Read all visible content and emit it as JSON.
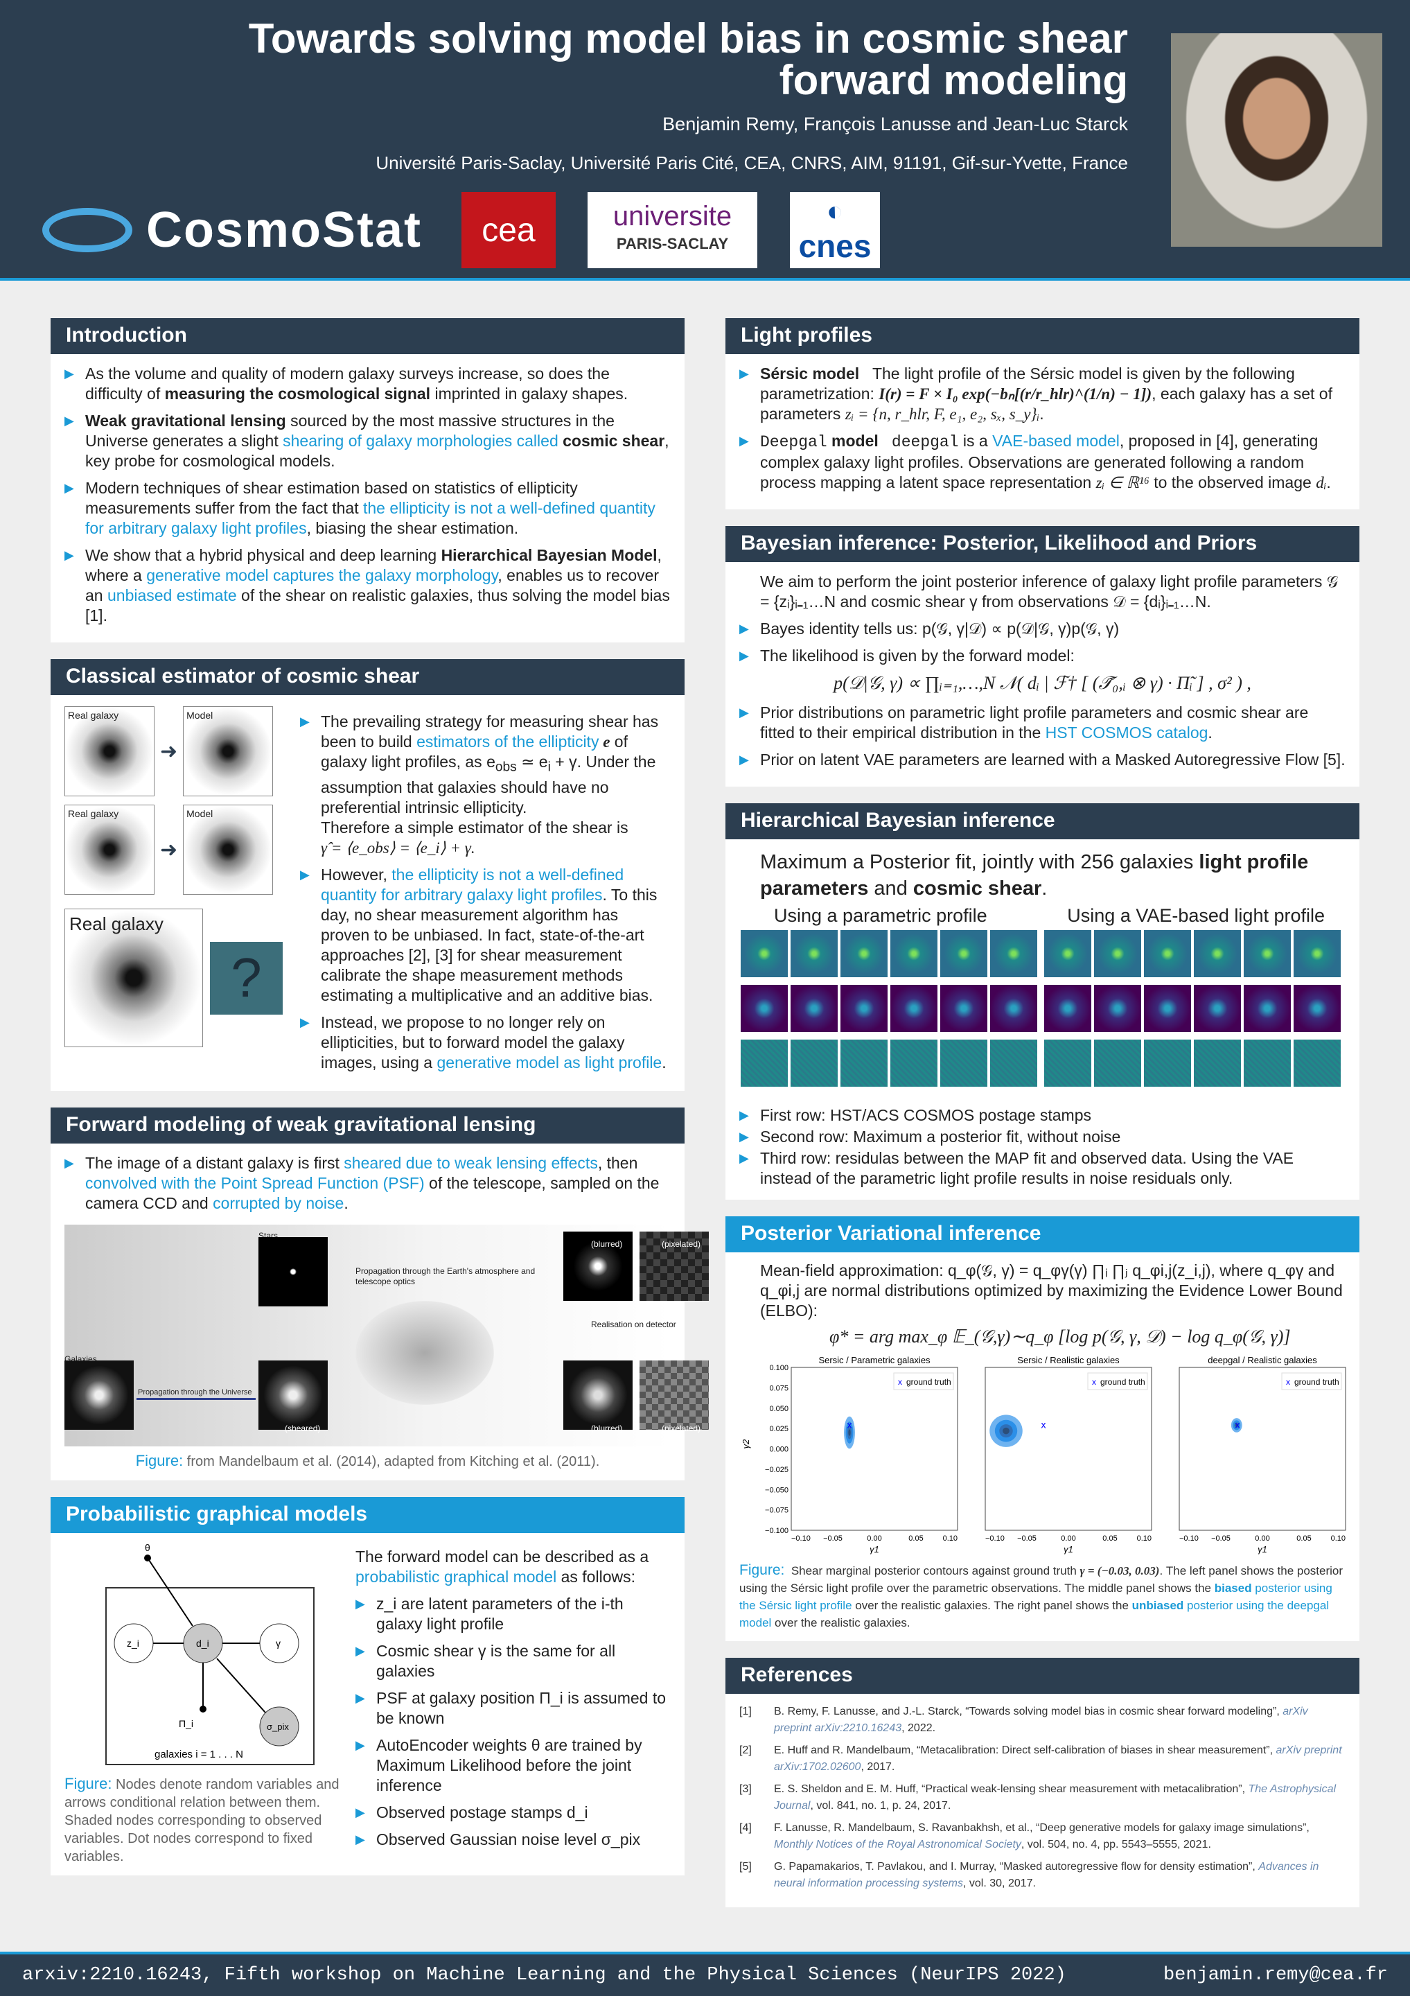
{
  "header": {
    "title": "Towards solving model bias in cosmic shear forward modeling",
    "authors": "Benjamin Remy, François Lanusse and Jean-Luc Starck",
    "affiliation": "Université Paris-Saclay, Université Paris Cité, CEA, CNRS, AIM, 91191, Gif-sur-Yvette, France",
    "logos": {
      "cosmostat": "CosmoStat",
      "cea": "cea",
      "ups_top": "universite",
      "ups_bottom": "PARIS-SACLAY",
      "cnes": "cnes"
    }
  },
  "intro": {
    "title": "Introduction",
    "items": [
      [
        "As the volume and quality of modern galaxy surveys increase, so does the difficulty of ",
        "measuring the cosmological signal",
        " imprinted in galaxy shapes."
      ],
      [
        "Weak gravitational lensing",
        " sourced by the most massive structures in the Universe generates a slight ",
        "shearing of galaxy morphologies called",
        "cosmic shear",
        ", key probe for cosmological models."
      ],
      [
        "Modern techniques of shear estimation based on statistics of ellipticity measurements suffer from the fact that ",
        "the ellipticity is not a well-defined quantity for arbitrary galaxy light profiles",
        ", biasing the shear estimation."
      ],
      [
        "We show that a hybrid physical and deep learning ",
        "Hierarchical Bayesian Model",
        ", where a ",
        "generative model captures the galaxy morphology",
        ", enables us to recover an ",
        "unbiased estimate",
        " of the shear on realistic galaxies, thus solving the model bias [1]."
      ]
    ]
  },
  "classical": {
    "title": "Classical estimator of cosmic shear",
    "fig_labels": {
      "real": "Real galaxy",
      "model": "Model",
      "qmark": "?"
    },
    "p1": [
      "The prevailing strategy for measuring shear has been to build ",
      "estimators of the ellipticity",
      " e",
      " of galaxy light profiles, as e",
      "obs",
      " ≃ e",
      "i",
      " + γ. Under the assumption that galaxies should have no preferential intrinsic ellipticity.",
      "Therefore a simple estimator of the shear is",
      "γ̂ = ⟨e_obs⟩ = ⟨e_i⟩ + γ."
    ],
    "p2": [
      "However, ",
      "the ellipticity is not a well-defined quantity for arbitrary galaxy light profiles",
      ". To this day, no shear measurement algorithm has proven to be unbiased. In fact, state-of-the-art approaches [2], [3] for shear measurement calibrate the shape measurement methods estimating a multiplicative and an additive bias."
    ],
    "p3": [
      "Instead, we propose to no longer rely on ellipticities, but to forward model the galaxy images, using a ",
      "generative model as light profile",
      "."
    ]
  },
  "forward": {
    "title": "Forward modeling of weak gravitational lensing",
    "text": [
      "The image of a distant galaxy is first ",
      "sheared due to weak lensing effects",
      ", then ",
      "convolved with the Point Spread Function (PSF)",
      " of the telescope, sampled on the camera CCD and ",
      "corrupted by noise",
      "."
    ],
    "fig": {
      "stars": "Stars",
      "galaxies": "Galaxies",
      "propagation_universe": "Propagation through the Universe",
      "propagation_atmo": "Propagation through the Earth's atmosphere and telescope optics",
      "detector": "Realisation on detector",
      "blurred": "(blurred)",
      "pixelated": "(pixelated)",
      "sheared": "(sheared)"
    },
    "caption_label": "Figure:",
    "caption": "from Mandelbaum et al. (2014), adapted from Kitching et al. (2011)."
  },
  "pgm": {
    "title": "Probabilistic graphical models",
    "nodes": {
      "theta": "θ",
      "z": "z_i",
      "d": "d_i",
      "gamma": "γ",
      "pi": "Π_i",
      "sigma": "σ_pix",
      "plate": "galaxies i = 1 . . . N"
    },
    "caption_label": "Figure:",
    "caption": "Nodes denote random variables and arrows conditional relation between them. Shaded nodes corresponding to observed variables. Dot nodes correspond to fixed variables.",
    "intro": [
      "The forward model can be described as a ",
      "probabilistic graphical model",
      " as follows:"
    ],
    "items": [
      "z_i are latent parameters of the i-th galaxy light profile",
      "Cosmic shear γ is the same for all galaxies",
      "PSF at galaxy position Π_i is assumed to be known",
      "AutoEncoder weights θ are trained by Maximum Likelihood before the joint inference",
      "Observed postage stamps d_i",
      "Observed Gaussian noise level σ_pix"
    ]
  },
  "light": {
    "title": "Light profiles",
    "sersic": [
      "Sérsic model",
      "The light profile of the Sérsic model is given by the following parametrization: ",
      "I(r) = F × I₀ exp(−bₙ[(r/r_hlr)^(1/n) − 1])",
      ", each galaxy has a set of parameters ",
      "zᵢ = {n, r_hlr, F, e₁, e₂, sₓ, s_y}ᵢ",
      "."
    ],
    "deepgal": [
      "Deepgal",
      " model",
      "deepgal",
      " is a ",
      "VAE-based model",
      ", proposed in [4], generating complex galaxy light profiles. Observations are generated following a random process mapping a latent space representation ",
      "zᵢ ∈ ℝ¹⁶",
      " to the observed image ",
      "dᵢ",
      "."
    ]
  },
  "bayes": {
    "title": "Bayesian inference: Posterior, Likelihood and Priors",
    "intro": "We aim to perform the joint posterior inference of galaxy light profile parameters 𝒢 = {zᵢ}ᵢ₌₁…N and cosmic shear γ from observations 𝒟 = {dᵢ}ᵢ₌₁…N.",
    "items": [
      "Bayes identity tells us: p(𝒢, γ|𝒟) ∝ p(𝒟|𝒢, γ)p(𝒢, γ)",
      "The likelihood is given by the forward model:",
      "Prior distributions on parametric light profile parameters and cosmic shear are fitted to their empirical distribution in the ",
      "HST COSMOS catalog",
      ".",
      "Prior on latent VAE parameters are learned with a Masked Autoregressive Flow [5]."
    ],
    "likelihood": "p(𝒟|𝒢, γ) ∝ ∏ᵢ₌₁,…,N 𝒩( dᵢ | ℱ† [ (𝒯̃₀,ᵢ ⊗ γ) · Π̃ᵢ ] , σ² ) ,"
  },
  "hier": {
    "title": "Hierarchical Bayesian inference",
    "lead": [
      "Maximum a Posterior fit, jointly with 256 galaxies ",
      "light profile parameters",
      " and ",
      "cosmic shear",
      "."
    ],
    "left_label": "Using a parametric profile",
    "right_label": "Using a VAE-based light profile",
    "items": [
      "First row: HST/ACS COSMOS postage stamps",
      "Second row: Maximum a posterior fit, without noise",
      "Third row: residulas between the MAP fit and observed data. Using the VAE instead of the parametric light profile results in noise residuals only."
    ]
  },
  "pvi": {
    "title": "Posterior Variational inference",
    "text": "Mean-field approximation: q_φ(𝒢, γ) = q_φγ(γ) ∏ᵢ ∏ⱼ q_φi,j(z_i,j), where q_φγ and q_φi,j are normal distributions optimized by maximizing the Evidence Lower Bound (ELBO):",
    "elbo": "φ* = arg max_φ  𝔼_(𝒢,γ)∼q_φ [log p(𝒢, γ, 𝒟) − log q_φ(𝒢, γ)]",
    "caption_label": "Figure:",
    "caption": [
      "Shear marginal posterior contours against ground truth ",
      "γ = (−0.03, 0.03)",
      ". The left panel shows the posterior using the Sérsic light profile over the parametric observations. The middle panel shows the ",
      "biased",
      " posterior using the Sérsic light profile",
      " over the realistic galaxies. The right panel shows the ",
      "unbiased",
      " posterior using the deepgal model",
      " over the realistic galaxies."
    ]
  },
  "chart_data": {
    "type": "scatter",
    "xlabel": "γ1",
    "ylabel": "γ2",
    "xlim": [
      -0.1,
      0.1
    ],
    "ylim": [
      -0.1,
      0.1
    ],
    "xticks": [
      "−0.10",
      "−0.05",
      "0.00",
      "0.05",
      "0.10"
    ],
    "yticks": [
      "0.100",
      "0.075",
      "0.050",
      "0.025",
      "0.000",
      "−0.025",
      "−0.050",
      "−0.075",
      "−0.100"
    ],
    "legend": "ground truth",
    "legend_position": "top-right",
    "ground_truth": [
      -0.03,
      0.03
    ],
    "panels": [
      {
        "title": "Sersic / Parametric galaxies",
        "posterior_center": [
          -0.03,
          0.02
        ],
        "posterior_spread": [
          0.003,
          0.009
        ]
      },
      {
        "title": "Sersic / Realistic galaxies",
        "posterior_center": [
          -0.075,
          0.022
        ],
        "posterior_spread": [
          0.009,
          0.009
        ]
      },
      {
        "title": "deepgal / Realistic galaxies",
        "posterior_center": [
          -0.031,
          0.029
        ],
        "posterior_spread": [
          0.003,
          0.004
        ]
      }
    ],
    "colors": {
      "contour": "#1f8ef0",
      "truth": "#0000ff"
    }
  },
  "refs": {
    "title": "References",
    "items": [
      [
        "[1]",
        "B. Remy, F. Lanusse, and J.-L. Starck, “Towards solving model bias in cosmic shear forward modeling”, ",
        "arXiv preprint arXiv:2210.16243",
        ", 2022."
      ],
      [
        "[2]",
        "E. Huff and R. Mandelbaum, “Metacalibration: Direct self-calibration of biases in shear measurement”, ",
        "arXiv preprint arXiv:1702.02600",
        ", 2017."
      ],
      [
        "[3]",
        "E. S. Sheldon and E. M. Huff, “Practical weak-lensing shear measurement with metacalibration”, ",
        "The Astrophysical Journal",
        ", vol. 841, no. 1, p. 24, 2017."
      ],
      [
        "[4]",
        "F. Lanusse, R. Mandelbaum, S. Ravanbakhsh, et al., “Deep generative models for galaxy image simulations”, ",
        "Monthly Notices of the Royal Astronomical Society",
        ", vol. 504, no. 4, pp. 5543–5555, 2021."
      ],
      [
        "[5]",
        "G. Papamakarios, T. Pavlakou, and I. Murray, “Masked autoregressive flow for density estimation”, ",
        "Advances in neural information processing systems",
        ", vol. 30, 2017."
      ]
    ]
  },
  "footer": {
    "left": "arxiv:2210.16243, Fifth workshop on Machine Learning and the Physical Sciences (NeurIPS 2022)",
    "right": "benjamin.remy@cea.fr"
  },
  "colors": {
    "header": "#2c3e50",
    "accent": "#1a9ad6"
  }
}
